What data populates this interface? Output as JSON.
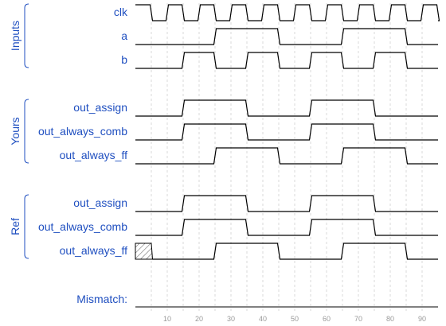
{
  "colors": {
    "label": "#1f4fc0",
    "wave": "#000000",
    "grid": "#d9d9d9",
    "tick": "#999999",
    "bracket": "#1f4fc0"
  },
  "groups": [
    {
      "title": "Inputs",
      "signals": [
        {
          "name": "clk",
          "wave": [
            [
              0,
              1
            ],
            [
              5,
              0
            ],
            [
              10,
              1
            ],
            [
              15,
              0
            ],
            [
              20,
              1
            ],
            [
              25,
              0
            ],
            [
              30,
              1
            ],
            [
              35,
              0
            ],
            [
              40,
              1
            ],
            [
              45,
              0
            ],
            [
              50,
              1
            ],
            [
              55,
              0
            ],
            [
              60,
              1
            ],
            [
              65,
              0
            ],
            [
              70,
              1
            ],
            [
              75,
              0
            ],
            [
              80,
              1
            ],
            [
              85,
              0
            ],
            [
              90,
              1
            ],
            [
              95,
              0
            ]
          ]
        },
        {
          "name": "a",
          "wave": [
            [
              0,
              0
            ],
            [
              25,
              1
            ],
            [
              45,
              0
            ],
            [
              65,
              1
            ],
            [
              85,
              0
            ]
          ]
        },
        {
          "name": "b",
          "wave": [
            [
              0,
              0
            ],
            [
              15,
              1
            ],
            [
              25,
              0
            ],
            [
              35,
              1
            ],
            [
              45,
              0
            ],
            [
              55,
              1
            ],
            [
              65,
              0
            ],
            [
              75,
              1
            ],
            [
              85,
              0
            ]
          ]
        }
      ]
    },
    {
      "title": "Yours",
      "signals": [
        {
          "name": "out_assign",
          "wave": [
            [
              0,
              0
            ],
            [
              15,
              1
            ],
            [
              35,
              0
            ],
            [
              55,
              1
            ],
            [
              75,
              0
            ]
          ]
        },
        {
          "name": "out_always_comb",
          "wave": [
            [
              0,
              0
            ],
            [
              15,
              1
            ],
            [
              35,
              0
            ],
            [
              55,
              1
            ],
            [
              75,
              0
            ]
          ]
        },
        {
          "name": "out_always_ff",
          "wave": [
            [
              0,
              0
            ],
            [
              25,
              1
            ],
            [
              45,
              0
            ],
            [
              65,
              1
            ],
            [
              85,
              0
            ]
          ]
        }
      ]
    },
    {
      "title": "Ref",
      "signals": [
        {
          "name": "out_assign",
          "wave": [
            [
              0,
              0
            ],
            [
              15,
              1
            ],
            [
              35,
              0
            ],
            [
              55,
              1
            ],
            [
              75,
              0
            ]
          ]
        },
        {
          "name": "out_always_comb",
          "wave": [
            [
              0,
              0
            ],
            [
              15,
              1
            ],
            [
              35,
              0
            ],
            [
              55,
              1
            ],
            [
              75,
              0
            ]
          ]
        },
        {
          "name": "out_always_ff",
          "wave": [
            [
              0,
              "x"
            ],
            [
              5,
              0
            ],
            [
              25,
              1
            ],
            [
              45,
              0
            ],
            [
              65,
              1
            ],
            [
              85,
              0
            ]
          ]
        }
      ]
    }
  ],
  "mismatch": {
    "label": "Mismatch:"
  },
  "time_axis": {
    "ticks": [
      "10",
      "20",
      "30",
      "40",
      "50",
      "60",
      "70",
      "80",
      "90"
    ],
    "tick_times": [
      10,
      20,
      30,
      40,
      50,
      60,
      70,
      80,
      90
    ],
    "range": [
      0,
      95
    ]
  }
}
